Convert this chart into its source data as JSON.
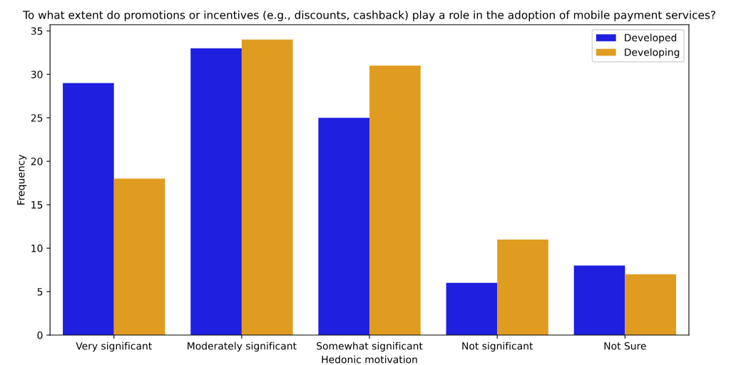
{
  "chart_data": {
    "type": "bar",
    "title": "To what extent do promotions or incentives (e.g., discounts, cashback) play a role in the adoption of mobile payment services?",
    "xlabel": "Hedonic motivation",
    "ylabel": "Frequency",
    "categories": [
      "Very significant",
      "Moderately significant",
      "Somewhat significant",
      "Not significant",
      "Not Sure"
    ],
    "series": [
      {
        "name": "Developed",
        "color": "#1f1fe0",
        "values": [
          29,
          33,
          25,
          6,
          8
        ]
      },
      {
        "name": "Developing",
        "color": "#e09c21",
        "values": [
          18,
          34,
          31,
          11,
          7
        ]
      }
    ],
    "ylim": [
      0,
      35.7
    ],
    "yticks": [
      0,
      5,
      10,
      15,
      20,
      25,
      30,
      35
    ],
    "grid": false,
    "legend": "top right"
  }
}
